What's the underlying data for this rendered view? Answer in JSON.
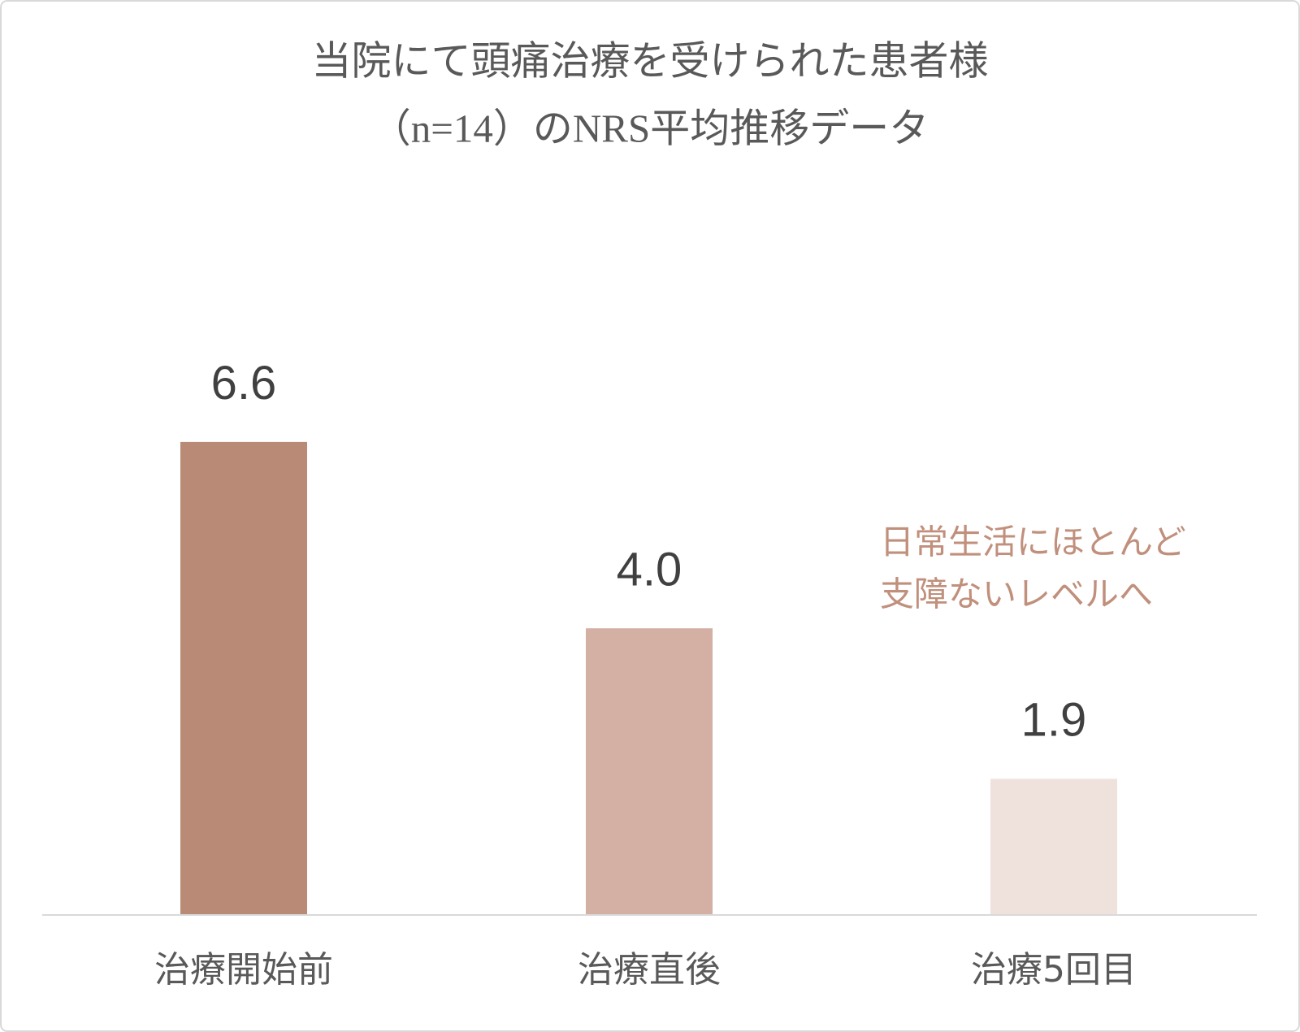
{
  "chart_data": {
    "type": "bar",
    "title": [
      "当院にて頭痛治療を受けられた患者様",
      "（n=14）のNRS平均推移データ"
    ],
    "categories": [
      "治療開始前",
      "治療直後",
      "治療5回目"
    ],
    "values": [
      6.6,
      4.0,
      1.9
    ],
    "value_labels": [
      "6.6",
      "4.0",
      "1.9"
    ],
    "colors": [
      "#b98a76",
      "#d4b0a4",
      "#efe2dd"
    ],
    "annotation": [
      "日常生活にほとんど",
      "支障ないレベルへ"
    ],
    "ylim": [
      0,
      10
    ]
  }
}
